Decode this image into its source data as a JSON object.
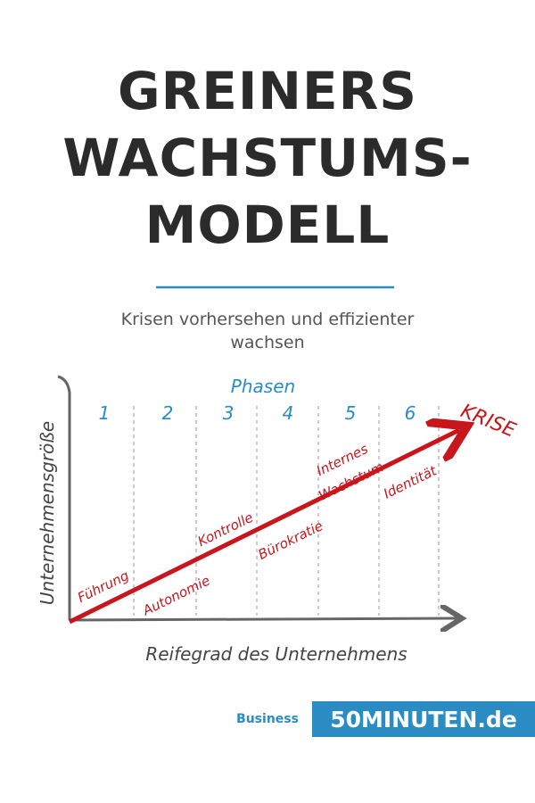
{
  "header": {
    "title": [
      "GREINERS",
      "WACHSTUMS-",
      "MODELL"
    ],
    "subtitle": [
      "Krisen vorhersehen und effizienter",
      "wachsen"
    ]
  },
  "diagram": {
    "phases_label": "Phasen",
    "phases": [
      "1",
      "2",
      "3",
      "4",
      "5",
      "6"
    ],
    "crisis": "KRISE",
    "y_axis_label": "Unternehmensgröße",
    "x_axis_label": "Reifegrad des Unternehmens",
    "stages": [
      "Führung",
      "Autonomie",
      "Kontrolle",
      "Bürokratie",
      "Internes",
      "Wachstum",
      "Identität"
    ]
  },
  "footer": {
    "category": "Business",
    "brand": "50MINUTEN.de"
  }
}
